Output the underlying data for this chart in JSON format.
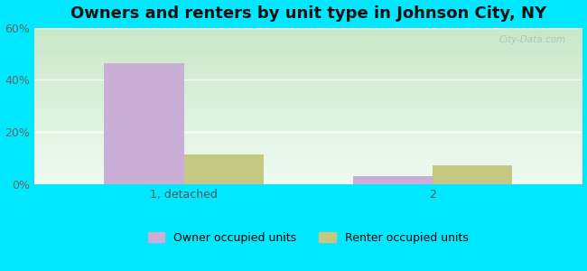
{
  "title": "Owners and renters by unit type in Johnson City, NY",
  "categories": [
    "1, detached",
    "2"
  ],
  "owner_values": [
    46.5,
    3.0
  ],
  "renter_values": [
    11.5,
    7.0
  ],
  "owner_color": "#c9aed6",
  "renter_color": "#c5c882",
  "ylim": [
    0,
    60
  ],
  "yticks": [
    0,
    20,
    40,
    60
  ],
  "yticklabels": [
    "0%",
    "20%",
    "40%",
    "60%"
  ],
  "outer_bg": "#00e8ff",
  "title_fontsize": 13,
  "bar_width": 0.32,
  "legend_labels": [
    "Owner occupied units",
    "Renter occupied units"
  ],
  "watermark": "City-Data.com",
  "grad_left_top": "#c8e8c8",
  "grad_right_bottom": "#f0faf5"
}
